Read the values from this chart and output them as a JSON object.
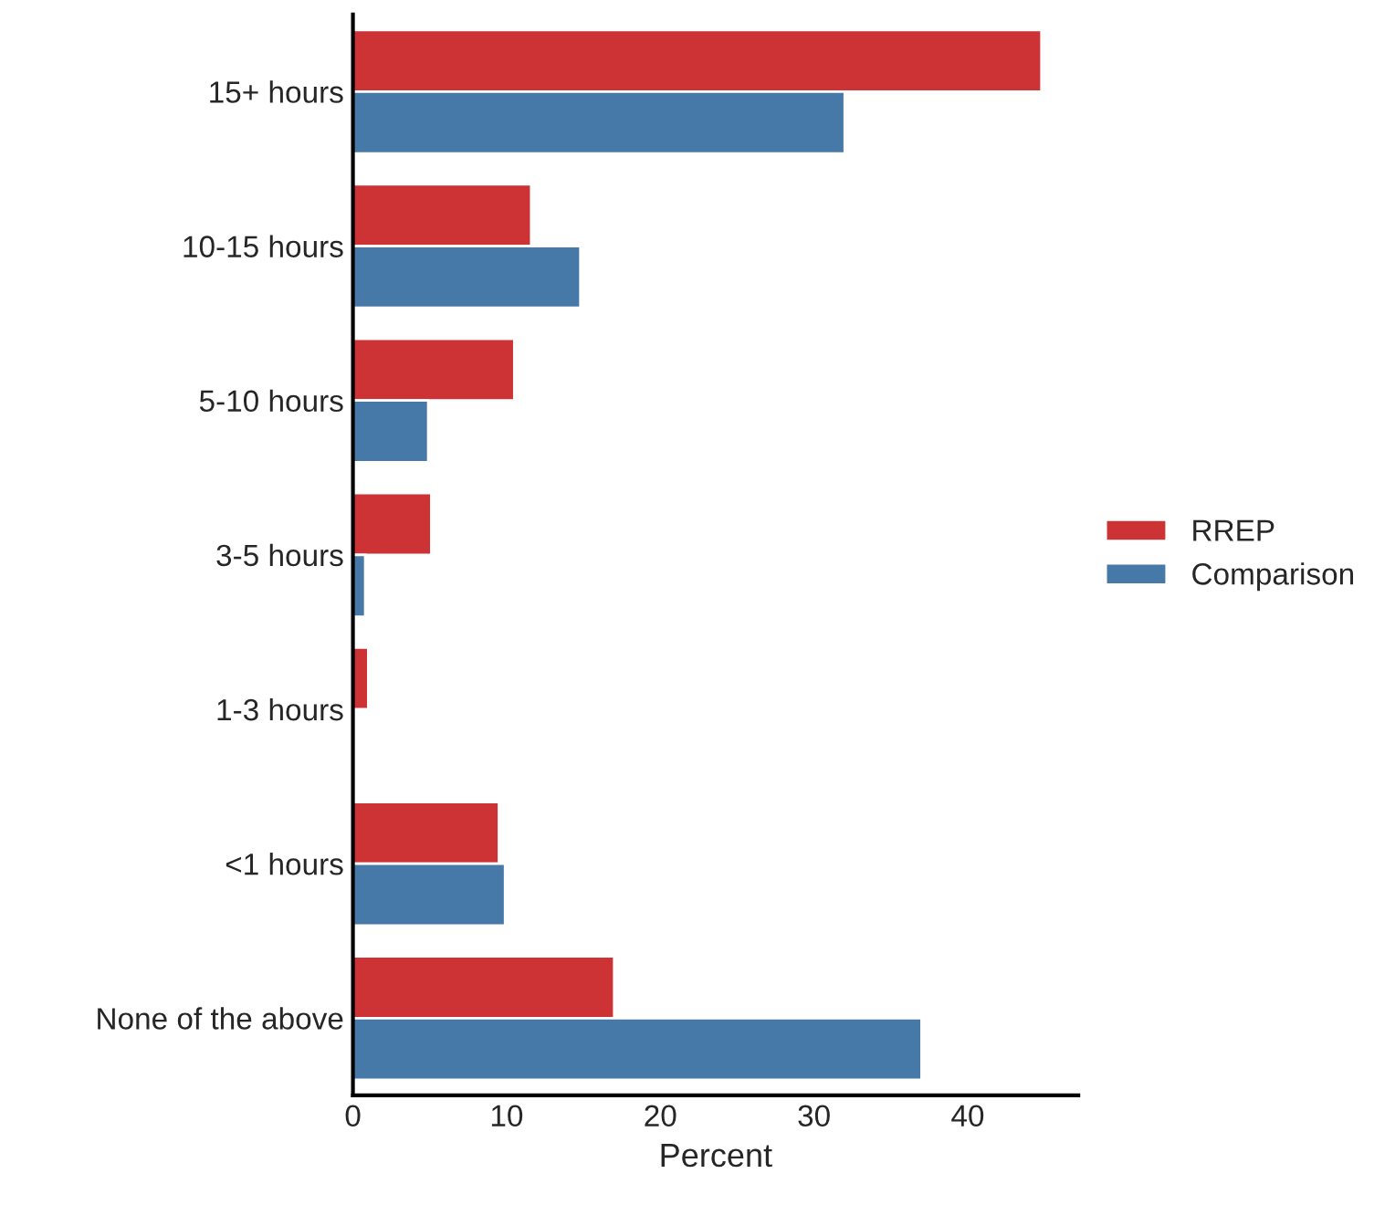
{
  "chart_data": {
    "type": "bar",
    "orientation": "horizontal",
    "xlabel": "Percent",
    "categories": [
      "15+ hours",
      "10-15 hours",
      "5-10 hours",
      "3-5 hours",
      "1-3 hours",
      "<1 hours",
      "None of the above"
    ],
    "series": [
      {
        "name": "RREP",
        "color": "#cd3234",
        "values": [
          44.8,
          11.6,
          10.5,
          5.1,
          1.0,
          9.5,
          17.0
        ]
      },
      {
        "name": "Comparison",
        "color": "#4679a8",
        "values": [
          32.0,
          14.8,
          4.9,
          0.8,
          null,
          9.9,
          37.0
        ]
      }
    ],
    "xlim": [
      0,
      47.2
    ],
    "xticks": [
      0,
      10,
      20,
      30,
      40
    ],
    "grid": false,
    "legend": "right"
  }
}
